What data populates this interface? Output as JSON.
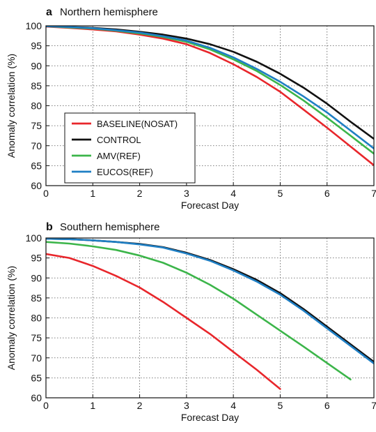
{
  "chart_data": [
    {
      "type": "line",
      "panel_letter": "a",
      "title": "Northern hemisphere",
      "xlabel": "Forecast Day",
      "ylabel": "Anomaly correlation (%)",
      "xlim": [
        0,
        7
      ],
      "ylim": [
        60,
        100
      ],
      "x_ticks": [
        0,
        1,
        2,
        3,
        4,
        5,
        6,
        7
      ],
      "y_ticks": [
        60,
        65,
        70,
        75,
        80,
        85,
        90,
        95,
        100
      ],
      "grid": true,
      "legend_position": "lower-left",
      "series": [
        {
          "name": "BASELINE(NOSAT)",
          "color": "#e8262b",
          "x": [
            0,
            0.5,
            1,
            1.5,
            2,
            2.5,
            3,
            3.5,
            4,
            4.5,
            5,
            5.5,
            6,
            6.5,
            7
          ],
          "y": [
            99.8,
            99.5,
            99.1,
            98.6,
            97.8,
            96.8,
            95.4,
            93.2,
            90.4,
            87.2,
            83.5,
            79.0,
            74.5,
            69.8,
            65.1
          ]
        },
        {
          "name": "CONTROL",
          "color": "#111111",
          "x": [
            0,
            0.5,
            1,
            1.5,
            2,
            2.5,
            3,
            3.5,
            4,
            4.5,
            5,
            5.5,
            6,
            6.5,
            7
          ],
          "y": [
            99.9,
            99.7,
            99.5,
            99.1,
            98.5,
            97.8,
            96.8,
            95.4,
            93.5,
            91.0,
            88.0,
            84.5,
            80.5,
            76.0,
            71.7
          ]
        },
        {
          "name": "AMV(REF)",
          "color": "#3cb54a",
          "x": [
            0,
            0.5,
            1,
            1.5,
            2,
            2.5,
            3,
            3.5,
            4,
            4.5,
            5,
            5.5,
            6,
            6.5,
            7
          ],
          "y": [
            99.9,
            99.6,
            99.3,
            98.8,
            98.1,
            97.2,
            96.0,
            94.1,
            91.6,
            88.7,
            85.2,
            81.3,
            77.0,
            72.5,
            68.0
          ]
        },
        {
          "name": "EUCOS(REF)",
          "color": "#1f7fc4",
          "x": [
            0,
            0.5,
            1,
            1.5,
            2,
            2.5,
            3,
            3.5,
            4,
            4.5,
            5,
            5.5,
            6,
            6.5,
            7
          ],
          "y": [
            99.9,
            99.7,
            99.4,
            98.9,
            98.3,
            97.4,
            96.3,
            94.5,
            92.1,
            89.2,
            86.0,
            82.3,
            78.3,
            73.8,
            69.3
          ]
        }
      ]
    },
    {
      "type": "line",
      "panel_letter": "b",
      "title": "Southern hemisphere",
      "xlabel": "Forecast Day",
      "ylabel": "Anomaly correlation (%)",
      "xlim": [
        0,
        7
      ],
      "ylim": [
        60,
        100
      ],
      "x_ticks": [
        0,
        1,
        2,
        3,
        4,
        5,
        6,
        7
      ],
      "y_ticks": [
        60,
        65,
        70,
        75,
        80,
        85,
        90,
        95,
        100
      ],
      "grid": true,
      "series": [
        {
          "name": "BASELINE(NOSAT)",
          "color": "#e8262b",
          "x": [
            0,
            0.5,
            1,
            1.5,
            2,
            2.5,
            3,
            3.5,
            4,
            4.5,
            5
          ],
          "y": [
            96.0,
            95.0,
            93.0,
            90.5,
            87.6,
            84.0,
            80.0,
            76.0,
            71.5,
            67.0,
            62.2
          ]
        },
        {
          "name": "CONTROL",
          "color": "#111111",
          "x": [
            0,
            0.5,
            1,
            1.5,
            2,
            2.5,
            3,
            3.5,
            4,
            4.5,
            5,
            5.5,
            6,
            6.5,
            7
          ],
          "y": [
            99.8,
            99.7,
            99.4,
            99.0,
            98.5,
            97.7,
            96.3,
            94.5,
            92.2,
            89.5,
            86.2,
            82.2,
            77.8,
            73.4,
            69.0
          ]
        },
        {
          "name": "AMV(REF)",
          "color": "#3cb54a",
          "x": [
            0,
            0.5,
            1,
            1.5,
            2,
            2.5,
            3,
            3.5,
            4,
            4.5,
            5,
            5.5,
            6,
            6.5
          ],
          "y": [
            99.0,
            98.6,
            97.9,
            97.0,
            95.6,
            93.8,
            91.3,
            88.3,
            84.8,
            80.8,
            76.8,
            72.8,
            68.7,
            64.6
          ]
        },
        {
          "name": "EUCOS(REF)",
          "color": "#1f7fc4",
          "x": [
            0,
            0.5,
            1,
            1.5,
            2,
            2.5,
            3,
            3.5,
            4,
            4.5,
            5,
            5.5,
            6,
            6.5,
            7
          ],
          "y": [
            99.8,
            99.7,
            99.4,
            99.0,
            98.4,
            97.6,
            96.1,
            94.3,
            91.9,
            89.1,
            85.8,
            81.8,
            77.4,
            73.0,
            68.6
          ]
        }
      ]
    }
  ]
}
